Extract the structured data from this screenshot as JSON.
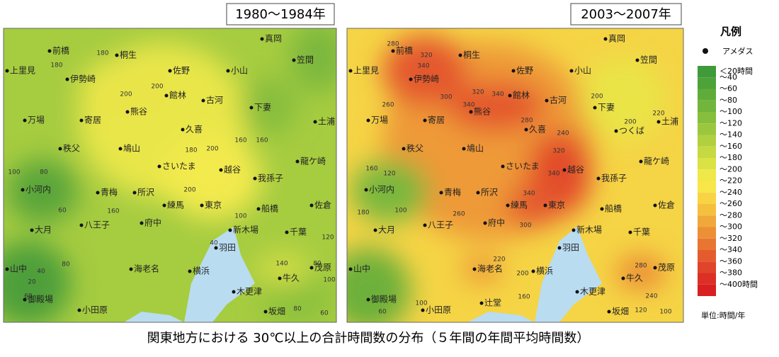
{
  "panels": [
    {
      "title": "1980〜1984年",
      "places": [
        "真岡",
        "前橋",
        "桐生",
        "笠間",
        "上里見",
        "佐野",
        "小山",
        "伊勢崎",
        "館林",
        "古河",
        "下妻",
        "熊谷",
        "寄居",
        "万場",
        "土浦",
        "久喜",
        "秩父",
        "鳩山",
        "龍ケ崎",
        "さいたま",
        "越谷",
        "我孫子",
        "小河内",
        "青梅",
        "所沢",
        "練馬",
        "東京",
        "船橋",
        "佐倉",
        "八王子",
        "府中",
        "大月",
        "新木場",
        "千葉",
        "羽田",
        "山中",
        "海老名",
        "横浜",
        "茂原",
        "牛久",
        "木更津",
        "御殿場",
        "小田原",
        "坂畑"
      ],
      "contours": [
        180,
        180,
        200,
        200,
        180,
        200,
        200,
        160,
        100,
        80,
        60,
        160,
        40,
        100,
        120,
        140,
        80,
        100,
        80,
        40,
        20,
        60,
        80,
        60,
        160
      ]
    },
    {
      "title": "2003〜2007年",
      "places": [
        "真岡",
        "前橋",
        "桐生",
        "笠間",
        "上里見",
        "佐野",
        "小山",
        "伊勢崎",
        "館林",
        "古河",
        "下妻",
        "熊谷",
        "寄居",
        "万場",
        "土浦",
        "久喜",
        "秩父",
        "鳩山",
        "龍ケ崎",
        "さいたま",
        "越谷",
        "我孫子",
        "小河内",
        "青梅",
        "所沢",
        "練馬",
        "東京",
        "船橋",
        "佐倉",
        "八王子",
        "府中",
        "大月",
        "新木場",
        "千葉",
        "羽田",
        "山中",
        "海老名",
        "横浜",
        "茂原",
        "牛久",
        "木更津",
        "御殿場",
        "小田原",
        "坂畑",
        "つくば",
        "辻堂"
      ],
      "contours": [
        280,
        320,
        340,
        300,
        260,
        320,
        340,
        340,
        280,
        240,
        200,
        220,
        200,
        320,
        340,
        340,
        300,
        260,
        160,
        120,
        180,
        100,
        220,
        200,
        160,
        280,
        240,
        120,
        100,
        60,
        100
      ]
    }
  ],
  "legend": {
    "title": "凡例",
    "marker": "アメダス",
    "items": [
      {
        "label": "＜20時間",
        "color": "#3f9a3a"
      },
      {
        "label": "〜40",
        "color": "#4ea23a"
      },
      {
        "label": "〜60",
        "color": "#5fac3b"
      },
      {
        "label": "〜80",
        "color": "#72b53c"
      },
      {
        "label": "〜100",
        "color": "#86be3d"
      },
      {
        "label": "〜120",
        "color": "#9bc73f"
      },
      {
        "label": "〜140",
        "color": "#b0d040"
      },
      {
        "label": "〜160",
        "color": "#c6d942"
      },
      {
        "label": "〜180",
        "color": "#dbe244"
      },
      {
        "label": "〜200",
        "color": "#eee848"
      },
      {
        "label": "〜220",
        "color": "#f8e64a"
      },
      {
        "label": "〜240",
        "color": "#f8d444"
      },
      {
        "label": "〜260",
        "color": "#f4c03e"
      },
      {
        "label": "〜280",
        "color": "#f0a83a"
      },
      {
        "label": "〜300",
        "color": "#ec9036"
      },
      {
        "label": "〜320",
        "color": "#e87632"
      },
      {
        "label": "〜340",
        "color": "#e45c2e"
      },
      {
        "label": "〜360",
        "color": "#e0442a"
      },
      {
        "label": "〜380",
        "color": "#dc3026"
      },
      {
        "label": "〜400時間",
        "color": "#d81f22"
      }
    ],
    "unit": "単位:時間/年"
  },
  "caption": "関東地方における 30℃以上の合計時間数の分布（５年間の年間平均時間数）"
}
